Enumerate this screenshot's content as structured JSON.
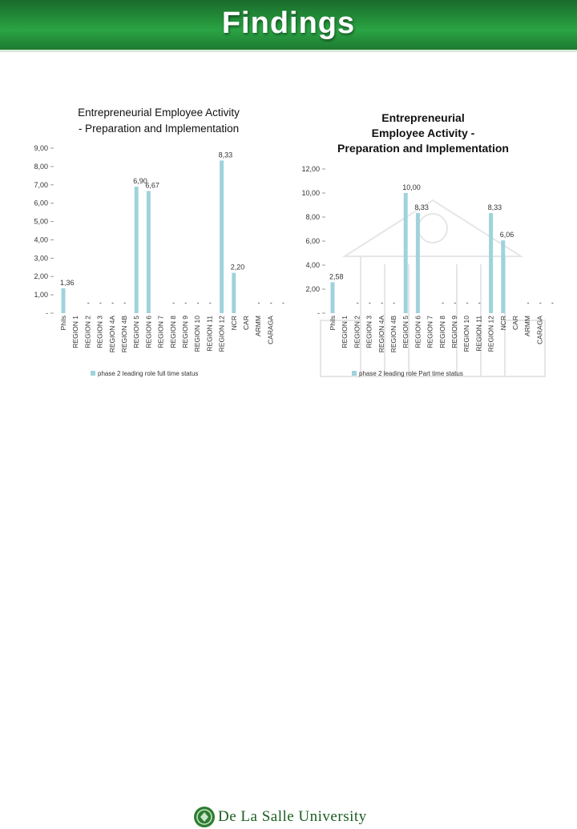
{
  "header": {
    "title": "Findings"
  },
  "footer": {
    "logo_text": "De La Salle University"
  },
  "chart_data": [
    {
      "type": "bar",
      "title": "Entrepreneurial Employee Activity - Preparation and Implementation",
      "categories": [
        "Phils",
        "REGION 1",
        "REGION 2",
        "REGION 3",
        "REGION 4A",
        "REGION 4B",
        "REGION 5",
        "REGION 6",
        "REGION 7",
        "REGION 8",
        "REGION 9",
        "REGION 10",
        "REGION 11",
        "REGION 12",
        "NCR",
        "CAR",
        "ARMM",
        "CARAGA"
      ],
      "series": [
        {
          "name": "phase 2 leading role full time status",
          "values": [
            1.36,
            0,
            0,
            0,
            0,
            0,
            6.9,
            6.67,
            0,
            0,
            0,
            0,
            0,
            8.33,
            2.2,
            0,
            0,
            0
          ]
        }
      ],
      "data_labels": [
        "1,36",
        "-",
        "-",
        "-",
        "-",
        "-",
        "6,90",
        "6,67",
        "-",
        "-",
        "-",
        "-",
        "-",
        "8,33",
        "2,20",
        "-",
        "-",
        "-"
      ],
      "yticks": [
        "-",
        "1,00",
        "2,00",
        "3,00",
        "4,00",
        "5,00",
        "6,00",
        "7,00",
        "8,00",
        "9,00"
      ],
      "ylim": [
        0,
        9
      ],
      "xlabel": "",
      "ylabel": "",
      "legend_position": "bottom",
      "color": "#9fd3dc"
    },
    {
      "type": "bar",
      "title": "Entrepreneurial Employee Activity - Preparation and Implementation",
      "categories": [
        "Phils",
        "REGION 1",
        "REGION 2",
        "REGION 3",
        "REGION 4A",
        "REGION 4B",
        "REGION 5",
        "REGION 6",
        "REGION 7",
        "REGION 8",
        "REGION 9",
        "REGION 10",
        "REGION 11",
        "REGION 12",
        "NCR",
        "CAR",
        "ARMM",
        "CARAGA"
      ],
      "series": [
        {
          "name": "phase 2 leading role Part time status",
          "values": [
            2.58,
            0,
            0,
            0,
            0,
            0,
            10.0,
            8.33,
            0,
            0,
            0,
            0,
            0,
            8.33,
            6.06,
            0,
            0,
            0
          ]
        }
      ],
      "data_labels": [
        "2,58",
        "-",
        "-",
        "-",
        "-",
        "-",
        "10,00",
        "8,33",
        "-",
        "-",
        "-",
        "-",
        "-",
        "8,33",
        "6,06",
        "-",
        "-",
        "-"
      ],
      "yticks": [
        "-",
        "2,00",
        "4,00",
        "6,00",
        "8,00",
        "10,00",
        "12,00"
      ],
      "ylim": [
        0,
        12
      ],
      "xlabel": "",
      "ylabel": "",
      "legend_position": "bottom",
      "color": "#9fd3dc"
    }
  ]
}
